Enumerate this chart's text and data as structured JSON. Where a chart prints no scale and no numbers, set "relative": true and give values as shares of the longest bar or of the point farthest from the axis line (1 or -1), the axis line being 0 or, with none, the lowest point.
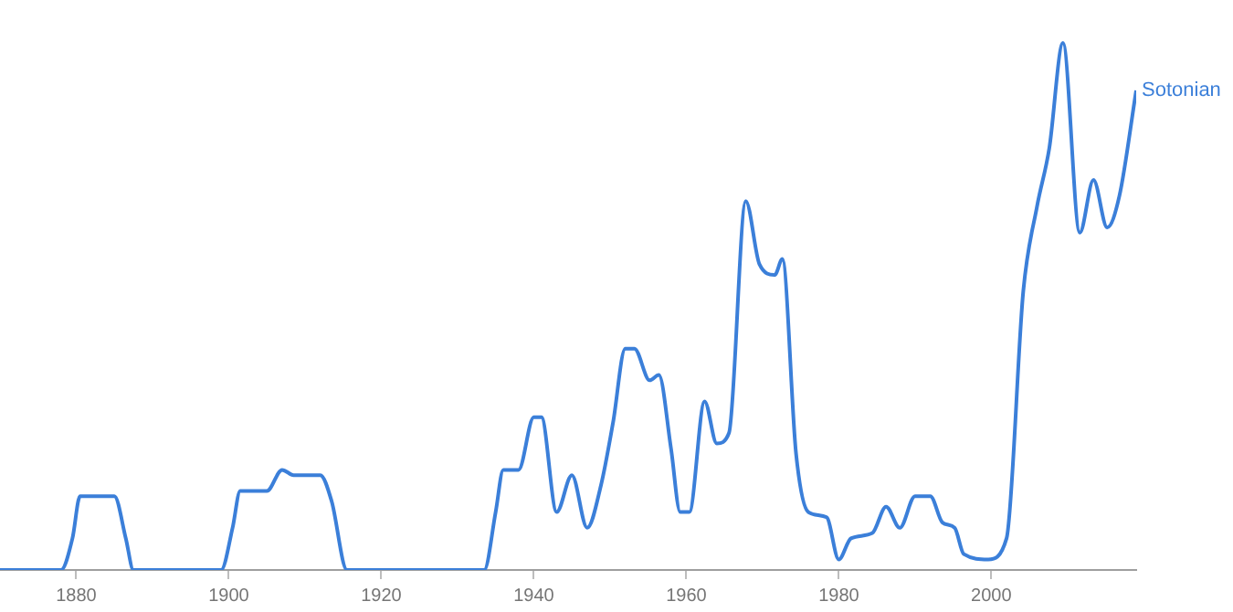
{
  "chart_data": {
    "type": "line",
    "relative": true,
    "xlim": [
      1870,
      2019
    ],
    "xticks": [
      1880,
      1900,
      1920,
      1940,
      1960,
      1980,
      2000
    ],
    "series": [
      {
        "name": "Sotonian",
        "color": "#3b7fd9",
        "x": [
          1870,
          1878,
          1879.5,
          1880.5,
          1885,
          1886.5,
          1887.5,
          1899,
          1900.5,
          1901.5,
          1905,
          1907,
          1908.5,
          1912,
          1913.5,
          1915.5,
          1933.5,
          1935,
          1936,
          1938,
          1940,
          1941,
          1943,
          1945,
          1947,
          1948.8,
          1950.4,
          1952,
          1953.2,
          1955.2,
          1956.4,
          1958,
          1959.2,
          1960.4,
          1962.4,
          1964,
          1965.6,
          1967.8,
          1969.6,
          1971.6,
          1972.6,
          1974.4,
          1976,
          1978.4,
          1980,
          1981.6,
          1984.4,
          1986.2,
          1988,
          1990,
          1992,
          1993.6,
          1995.2,
          1996.4,
          1999.6,
          2002,
          2004.2,
          2006,
          2007.6,
          2009.4,
          2011.6,
          2013.4,
          2015.2,
          2016.8,
          2019
        ],
        "values": [
          0,
          0,
          0.06,
          0.14,
          0.14,
          0.06,
          0,
          0,
          0.08,
          0.15,
          0.15,
          0.19,
          0.18,
          0.18,
          0.13,
          0,
          0,
          0.11,
          0.19,
          0.19,
          0.29,
          0.29,
          0.11,
          0.18,
          0.08,
          0.16,
          0.28,
          0.42,
          0.42,
          0.36,
          0.37,
          0.23,
          0.11,
          0.11,
          0.32,
          0.24,
          0.26,
          0.7,
          0.58,
          0.56,
          0.59,
          0.22,
          0.11,
          0.1,
          0.02,
          0.06,
          0.07,
          0.12,
          0.08,
          0.14,
          0.14,
          0.09,
          0.08,
          0.03,
          0.02,
          0.06,
          0.53,
          0.69,
          0.8,
          1,
          0.64,
          0.74,
          0.65,
          0.71,
          0.91
        ]
      }
    ]
  }
}
